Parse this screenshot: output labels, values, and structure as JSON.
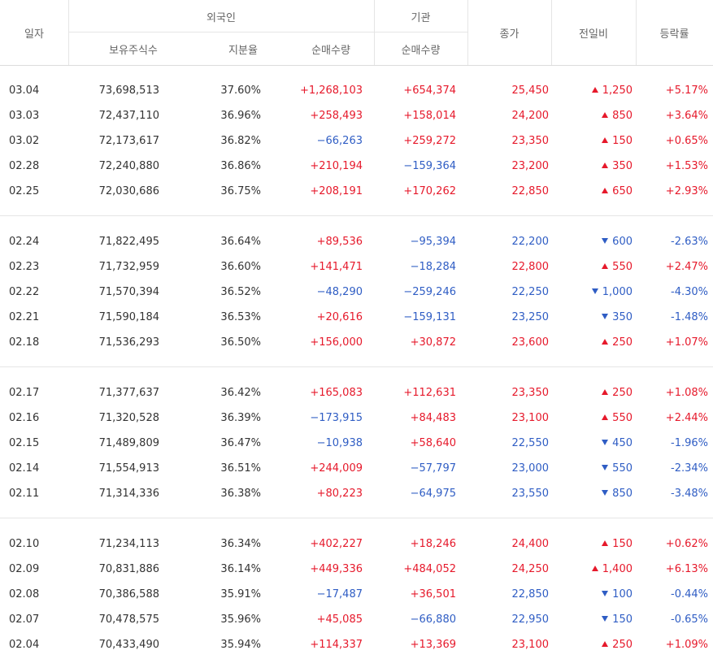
{
  "header": {
    "date": "일자",
    "foreign": "외국인",
    "institution": "기관",
    "close": "종가",
    "change": "전일비",
    "rate": "등락률",
    "holdings": "보유주식수",
    "ratio": "지분율",
    "foreign_net": "순매수량",
    "institution_net": "순매수량"
  },
  "colors": {
    "up": "#e6192b",
    "down": "#2f5dc4",
    "border": "#e5e5e5",
    "header_text": "#666666"
  },
  "groups": [
    {
      "rows": [
        {
          "date": "03.04",
          "holdings": "73,698,513",
          "ratio": "37.60%",
          "foreign_net": "+1,268,103",
          "inst_net": "+654,374",
          "close": "25,450",
          "dir": "up",
          "change": "1,250",
          "rate": "+5.17%"
        },
        {
          "date": "03.03",
          "holdings": "72,437,110",
          "ratio": "36.96%",
          "foreign_net": "+258,493",
          "inst_net": "+158,014",
          "close": "24,200",
          "dir": "up",
          "change": "850",
          "rate": "+3.64%"
        },
        {
          "date": "03.02",
          "holdings": "72,173,617",
          "ratio": "36.82%",
          "foreign_net": "−66,263",
          "inst_net": "+259,272",
          "close": "23,350",
          "dir": "up",
          "change": "150",
          "rate": "+0.65%"
        },
        {
          "date": "02.28",
          "holdings": "72,240,880",
          "ratio": "36.86%",
          "foreign_net": "+210,194",
          "inst_net": "−159,364",
          "close": "23,200",
          "dir": "up",
          "change": "350",
          "rate": "+1.53%"
        },
        {
          "date": "02.25",
          "holdings": "72,030,686",
          "ratio": "36.75%",
          "foreign_net": "+208,191",
          "inst_net": "+170,262",
          "close": "22,850",
          "dir": "up",
          "change": "650",
          "rate": "+2.93%"
        }
      ]
    },
    {
      "rows": [
        {
          "date": "02.24",
          "holdings": "71,822,495",
          "ratio": "36.64%",
          "foreign_net": "+89,536",
          "inst_net": "−95,394",
          "close": "22,200",
          "dir": "down",
          "change": "600",
          "rate": "-2.63%"
        },
        {
          "date": "02.23",
          "holdings": "71,732,959",
          "ratio": "36.60%",
          "foreign_net": "+141,471",
          "inst_net": "−18,284",
          "close": "22,800",
          "dir": "up",
          "change": "550",
          "rate": "+2.47%"
        },
        {
          "date": "02.22",
          "holdings": "71,570,394",
          "ratio": "36.52%",
          "foreign_net": "−48,290",
          "inst_net": "−259,246",
          "close": "22,250",
          "dir": "down",
          "change": "1,000",
          "rate": "-4.30%"
        },
        {
          "date": "02.21",
          "holdings": "71,590,184",
          "ratio": "36.53%",
          "foreign_net": "+20,616",
          "inst_net": "−159,131",
          "close": "23,250",
          "dir": "down",
          "change": "350",
          "rate": "-1.48%"
        },
        {
          "date": "02.18",
          "holdings": "71,536,293",
          "ratio": "36.50%",
          "foreign_net": "+156,000",
          "inst_net": "+30,872",
          "close": "23,600",
          "dir": "up",
          "change": "250",
          "rate": "+1.07%"
        }
      ]
    },
    {
      "rows": [
        {
          "date": "02.17",
          "holdings": "71,377,637",
          "ratio": "36.42%",
          "foreign_net": "+165,083",
          "inst_net": "+112,631",
          "close": "23,350",
          "dir": "up",
          "change": "250",
          "rate": "+1.08%"
        },
        {
          "date": "02.16",
          "holdings": "71,320,528",
          "ratio": "36.39%",
          "foreign_net": "−173,915",
          "inst_net": "+84,483",
          "close": "23,100",
          "dir": "up",
          "change": "550",
          "rate": "+2.44%"
        },
        {
          "date": "02.15",
          "holdings": "71,489,809",
          "ratio": "36.47%",
          "foreign_net": "−10,938",
          "inst_net": "+58,640",
          "close": "22,550",
          "dir": "down",
          "change": "450",
          "rate": "-1.96%"
        },
        {
          "date": "02.14",
          "holdings": "71,554,913",
          "ratio": "36.51%",
          "foreign_net": "+244,009",
          "inst_net": "−57,797",
          "close": "23,000",
          "dir": "down",
          "change": "550",
          "rate": "-2.34%"
        },
        {
          "date": "02.11",
          "holdings": "71,314,336",
          "ratio": "36.38%",
          "foreign_net": "+80,223",
          "inst_net": "−64,975",
          "close": "23,550",
          "dir": "down",
          "change": "850",
          "rate": "-3.48%"
        }
      ]
    },
    {
      "rows": [
        {
          "date": "02.10",
          "holdings": "71,234,113",
          "ratio": "36.34%",
          "foreign_net": "+402,227",
          "inst_net": "+18,246",
          "close": "24,400",
          "dir": "up",
          "change": "150",
          "rate": "+0.62%"
        },
        {
          "date": "02.09",
          "holdings": "70,831,886",
          "ratio": "36.14%",
          "foreign_net": "+449,336",
          "inst_net": "+484,052",
          "close": "24,250",
          "dir": "up",
          "change": "1,400",
          "rate": "+6.13%"
        },
        {
          "date": "02.08",
          "holdings": "70,386,588",
          "ratio": "35.91%",
          "foreign_net": "−17,487",
          "inst_net": "+36,501",
          "close": "22,850",
          "dir": "down",
          "change": "100",
          "rate": "-0.44%"
        },
        {
          "date": "02.07",
          "holdings": "70,478,575",
          "ratio": "35.96%",
          "foreign_net": "+45,085",
          "inst_net": "−66,880",
          "close": "22,950",
          "dir": "down",
          "change": "150",
          "rate": "-0.65%"
        },
        {
          "date": "02.04",
          "holdings": "70,433,490",
          "ratio": "35.94%",
          "foreign_net": "+114,337",
          "inst_net": "+13,369",
          "close": "23,100",
          "dir": "up",
          "change": "250",
          "rate": "+1.09%"
        }
      ]
    }
  ]
}
